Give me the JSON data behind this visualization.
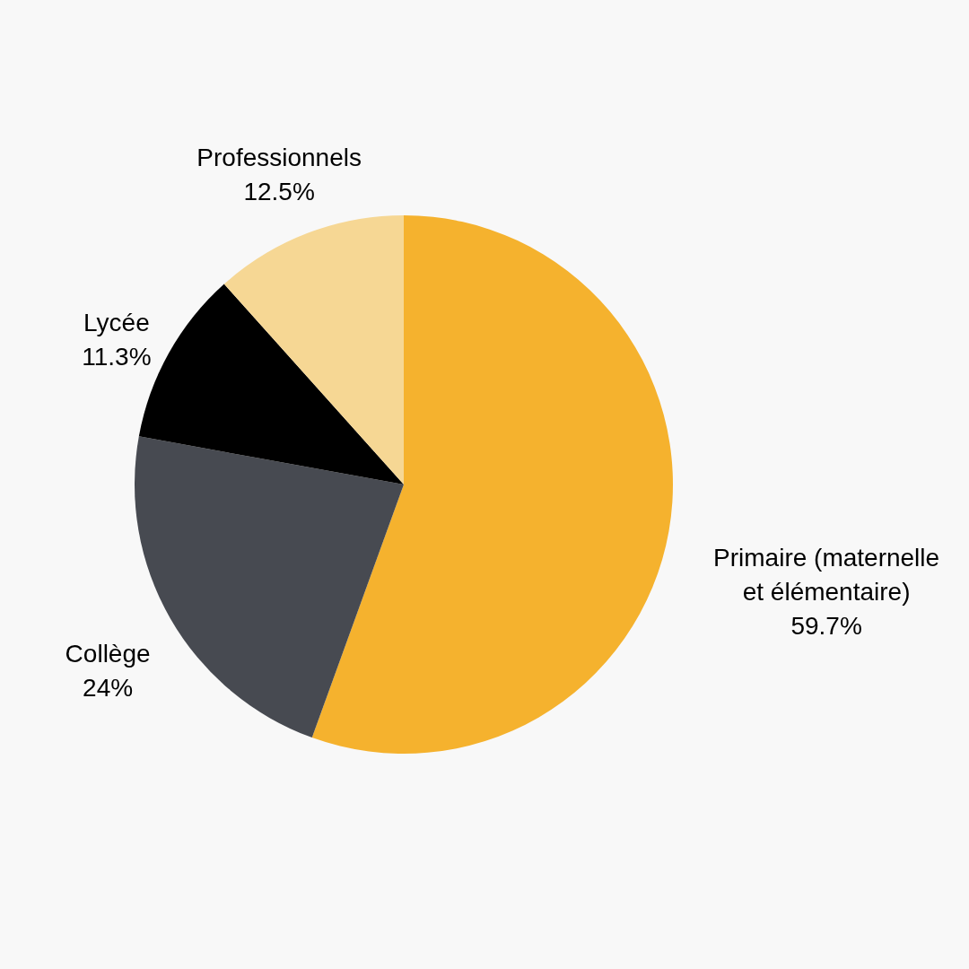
{
  "chart_data": {
    "type": "pie",
    "categories": [
      "Primaire (maternelle et élémentaire)",
      "Collège",
      "Lycée",
      "Professionnels"
    ],
    "values": [
      59.7,
      24,
      11.3,
      12.5
    ],
    "colors": [
      "#f5b22e",
      "#474a51",
      "#000000",
      "#f6d794"
    ],
    "value_labels": [
      "59.7%",
      "24%",
      "11.3%",
      "12.5%"
    ],
    "legend": false
  }
}
